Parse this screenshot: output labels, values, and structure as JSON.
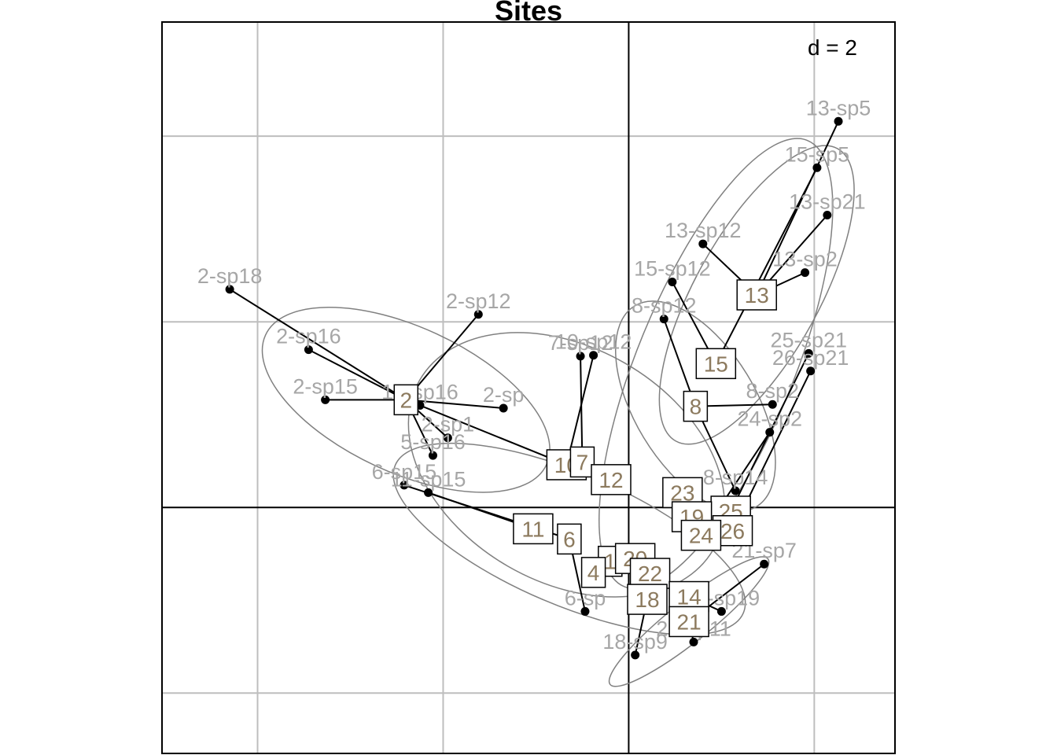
{
  "chart_data": {
    "type": "scatter",
    "title": "Sites",
    "scale_label": "d = 2",
    "xlim": [
      -5.03,
      2.87
    ],
    "ylim": [
      -2.65,
      5.23
    ],
    "grid_step": 2,
    "grid": true,
    "colors": {
      "grid": "#bebebe",
      "axes": "#000000",
      "points": "#000000",
      "ellipse": "#808080",
      "species_label": "#a6a6a6",
      "site_label": "#8c7a5e"
    },
    "sites": [
      {
        "label": "2",
        "x": -2.4,
        "y": 1.16
      },
      {
        "label": "13",
        "x": 1.38,
        "y": 2.29
      },
      {
        "label": "15",
        "x": 0.94,
        "y": 1.55
      },
      {
        "label": "8",
        "x": 0.72,
        "y": 1.09
      },
      {
        "label": "10",
        "x": -0.67,
        "y": 0.46
      },
      {
        "label": "7",
        "x": -0.5,
        "y": 0.49
      },
      {
        "label": "12",
        "x": -0.19,
        "y": 0.3
      },
      {
        "label": "23",
        "x": 0.58,
        "y": 0.16
      },
      {
        "label": "25",
        "x": 1.1,
        "y": -0.04
      },
      {
        "label": "19",
        "x": 0.68,
        "y": -0.1
      },
      {
        "label": "26",
        "x": 1.12,
        "y": -0.25
      },
      {
        "label": "24",
        "x": 0.78,
        "y": -0.3
      },
      {
        "label": "11",
        "x": -1.03,
        "y": -0.23
      },
      {
        "label": "6",
        "x": -0.64,
        "y": -0.34
      },
      {
        "label": "1",
        "x": -0.2,
        "y": -0.58
      },
      {
        "label": "20",
        "x": 0.07,
        "y": -0.55
      },
      {
        "label": "4",
        "x": -0.38,
        "y": -0.7
      },
      {
        "label": "22",
        "x": 0.23,
        "y": -0.71
      },
      {
        "label": "14",
        "x": 0.65,
        "y": -0.96
      },
      {
        "label": "18",
        "x": 0.2,
        "y": -0.99
      },
      {
        "label": "21",
        "x": 0.65,
        "y": -1.23
      }
    ],
    "species_points": [
      {
        "label": "2-sp18",
        "site": "2",
        "x": -4.3,
        "y": 2.35
      },
      {
        "label": "2-sp16",
        "site": "2",
        "x": -3.45,
        "y": 1.7
      },
      {
        "label": "2-sp12",
        "site": "2",
        "x": -1.62,
        "y": 2.08
      },
      {
        "label": "2-sp15",
        "site": "2",
        "x": -3.27,
        "y": 1.16
      },
      {
        "label": "10-sp16",
        "site": "10",
        "x": -2.25,
        "y": 1.1
      },
      {
        "label": "2-sp",
        "site": "2",
        "x": -1.35,
        "y": 1.07
      },
      {
        "label": "2-sp1",
        "site": "2",
        "x": -1.95,
        "y": 0.75
      },
      {
        "label": "5-sp16",
        "site": "2",
        "x": -2.11,
        "y": 0.56
      },
      {
        "label": "6-sp15",
        "site": "6",
        "x": -2.42,
        "y": 0.24
      },
      {
        "label": "11-sp15",
        "site": "11",
        "x": -2.16,
        "y": 0.16
      },
      {
        "label": "13-sp5",
        "site": "13",
        "x": 2.26,
        "y": 4.16
      },
      {
        "label": "15-sp5",
        "site": "15",
        "x": 2.03,
        "y": 3.66
      },
      {
        "label": "13-sp21",
        "site": "13",
        "x": 2.14,
        "y": 3.15
      },
      {
        "label": "13-sp12",
        "site": "13",
        "x": 0.8,
        "y": 2.84
      },
      {
        "label": "13-sp2",
        "site": "13",
        "x": 1.9,
        "y": 2.53
      },
      {
        "label": "15-sp12",
        "site": "15",
        "x": 0.47,
        "y": 2.43
      },
      {
        "label": "8-sp12",
        "site": "8",
        "x": 0.38,
        "y": 2.03
      },
      {
        "label": "7-sp12",
        "site": "7",
        "x": -0.52,
        "y": 1.63
      },
      {
        "label": "10-sp12",
        "site": "10",
        "x": -0.38,
        "y": 1.64
      },
      {
        "label": "25-sp21",
        "site": "25",
        "x": 1.94,
        "y": 1.66
      },
      {
        "label": "26-sp21",
        "site": "26",
        "x": 1.96,
        "y": 1.47
      },
      {
        "label": "8-sp2",
        "site": "8",
        "x": 1.55,
        "y": 1.11
      },
      {
        "label": "24-sp2",
        "site": "24",
        "x": 1.52,
        "y": 0.81
      },
      {
        "label": "8-sp14",
        "site": "8",
        "x": 1.15,
        "y": 0.18
      },
      {
        "label": "21-sp7",
        "site": "21",
        "x": 1.46,
        "y": -0.61
      },
      {
        "label": "6-sp",
        "site": "6",
        "x": -0.47,
        "y": -1.12
      },
      {
        "label": "18-sp9",
        "site": "18",
        "x": 0.07,
        "y": -1.59
      },
      {
        "label": "21-sp11",
        "site": "21",
        "x": 0.7,
        "y": -1.45
      },
      {
        "label": "14-sp19",
        "site": "14",
        "x": 1.0,
        "y": -1.12
      }
    ]
  }
}
